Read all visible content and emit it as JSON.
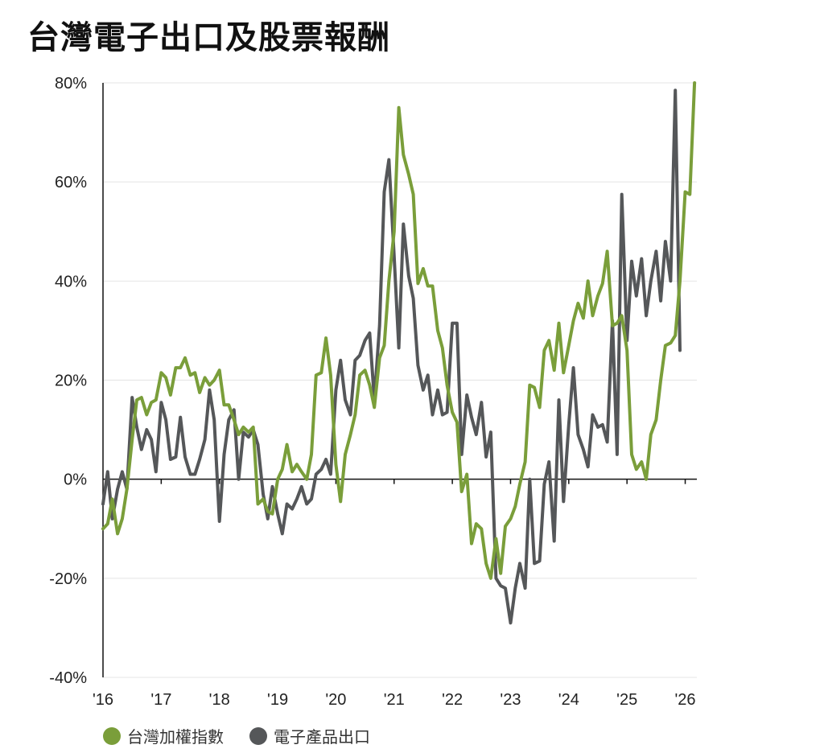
{
  "title": "台灣電子出口及股票報酬",
  "chart_data": {
    "type": "line",
    "title": "台灣電子出口及股票報酬",
    "xlabel": "",
    "ylabel": "",
    "xlim": [
      2016.0,
      2026.2
    ],
    "ylim": [
      -40,
      80
    ],
    "y_ticks": [
      80,
      60,
      40,
      20,
      0,
      -20,
      -40
    ],
    "y_tick_labels": [
      "80%",
      "60%",
      "40%",
      "20%",
      "0%",
      "-20%",
      "-40%"
    ],
    "x_ticks": [
      2016,
      2017,
      2018,
      2019,
      2020,
      2021,
      2022,
      2023,
      2024,
      2025,
      2026
    ],
    "x_tick_labels": [
      "'16",
      "'17",
      "'18",
      "'19",
      "'20",
      "'21",
      "'22",
      "'23",
      "'24",
      "'25",
      "'26"
    ],
    "grid": true,
    "legend_position": "bottom-left",
    "series": [
      {
        "name": "台灣加權指數",
        "color": "#7a9e3a",
        "points": [
          [
            2016.0,
            -10
          ],
          [
            2016.08,
            -9
          ],
          [
            2016.16,
            -4
          ],
          [
            2016.25,
            -11
          ],
          [
            2016.33,
            -8
          ],
          [
            2016.41,
            -2
          ],
          [
            2016.5,
            8
          ],
          [
            2016.58,
            16
          ],
          [
            2016.66,
            16.5
          ],
          [
            2016.75,
            13
          ],
          [
            2016.83,
            15.5
          ],
          [
            2016.91,
            16
          ],
          [
            2017.0,
            21.5
          ],
          [
            2017.08,
            20.5
          ],
          [
            2017.16,
            17
          ],
          [
            2017.25,
            22.5
          ],
          [
            2017.33,
            22.5
          ],
          [
            2017.41,
            24.5
          ],
          [
            2017.5,
            21
          ],
          [
            2017.58,
            21.5
          ],
          [
            2017.66,
            17.5
          ],
          [
            2017.75,
            20.5
          ],
          [
            2017.83,
            19
          ],
          [
            2017.91,
            20
          ],
          [
            2018.0,
            22
          ],
          [
            2018.08,
            15
          ],
          [
            2018.16,
            15
          ],
          [
            2018.25,
            12
          ],
          [
            2018.33,
            9
          ],
          [
            2018.41,
            10.5
          ],
          [
            2018.5,
            9.5
          ],
          [
            2018.58,
            10.5
          ],
          [
            2018.66,
            -5
          ],
          [
            2018.75,
            -4
          ],
          [
            2018.83,
            -6.5
          ],
          [
            2018.91,
            -7
          ],
          [
            2019.0,
            0
          ],
          [
            2019.08,
            2
          ],
          [
            2019.16,
            7
          ],
          [
            2019.25,
            1.5
          ],
          [
            2019.33,
            3
          ],
          [
            2019.41,
            1.5
          ],
          [
            2019.5,
            0
          ],
          [
            2019.58,
            5
          ],
          [
            2019.66,
            21
          ],
          [
            2019.75,
            21.5
          ],
          [
            2019.83,
            28.5
          ],
          [
            2019.91,
            21
          ],
          [
            2020.0,
            3
          ],
          [
            2020.08,
            -4.5
          ],
          [
            2020.16,
            5
          ],
          [
            2020.25,
            9
          ],
          [
            2020.33,
            13
          ],
          [
            2020.41,
            21
          ],
          [
            2020.5,
            22
          ],
          [
            2020.58,
            19
          ],
          [
            2020.66,
            14.5
          ],
          [
            2020.75,
            24.5
          ],
          [
            2020.83,
            27
          ],
          [
            2020.91,
            40
          ],
          [
            2021.0,
            50
          ],
          [
            2021.08,
            75
          ],
          [
            2021.16,
            65.5
          ],
          [
            2021.25,
            61.5
          ],
          [
            2021.33,
            57.5
          ],
          [
            2021.41,
            39.5
          ],
          [
            2021.5,
            42.5
          ],
          [
            2021.58,
            39
          ],
          [
            2021.66,
            39
          ],
          [
            2021.75,
            30
          ],
          [
            2021.83,
            26.5
          ],
          [
            2021.91,
            19
          ],
          [
            2022.0,
            13.5
          ],
          [
            2022.08,
            11.5
          ],
          [
            2022.16,
            -2.5
          ],
          [
            2022.25,
            1
          ],
          [
            2022.33,
            -13
          ],
          [
            2022.41,
            -9
          ],
          [
            2022.5,
            -10
          ],
          [
            2022.58,
            -17
          ],
          [
            2022.66,
            -20
          ],
          [
            2022.75,
            -12
          ],
          [
            2022.83,
            -19
          ],
          [
            2022.91,
            -9.5
          ],
          [
            2023.0,
            -8
          ],
          [
            2023.08,
            -5.5
          ],
          [
            2023.16,
            -1
          ],
          [
            2023.25,
            3.5
          ],
          [
            2023.33,
            19
          ],
          [
            2023.41,
            18.5
          ],
          [
            2023.5,
            14.5
          ],
          [
            2023.58,
            26
          ],
          [
            2023.66,
            28
          ],
          [
            2023.75,
            22
          ],
          [
            2023.83,
            31.5
          ],
          [
            2023.91,
            21.5
          ],
          [
            2024.0,
            27
          ],
          [
            2024.08,
            32
          ],
          [
            2024.16,
            35.5
          ],
          [
            2024.25,
            32.5
          ],
          [
            2024.33,
            40
          ],
          [
            2024.41,
            33
          ],
          [
            2024.5,
            37
          ],
          [
            2024.58,
            39.5
          ],
          [
            2024.66,
            46
          ],
          [
            2024.75,
            31
          ],
          [
            2024.83,
            31.5
          ],
          [
            2024.91,
            33
          ],
          [
            2025.0,
            26
          ],
          [
            2025.08,
            5
          ],
          [
            2025.16,
            2
          ],
          [
            2025.25,
            3.5
          ],
          [
            2025.33,
            0
          ],
          [
            2025.41,
            9
          ],
          [
            2025.5,
            12
          ],
          [
            2025.58,
            20
          ],
          [
            2025.66,
            27
          ],
          [
            2025.75,
            27.5
          ],
          [
            2025.83,
            29
          ],
          [
            2025.91,
            40
          ],
          [
            2026.0,
            58
          ],
          [
            2026.08,
            57.5
          ],
          [
            2026.16,
            80
          ]
        ]
      },
      {
        "name": "電子產品出口",
        "color": "#555759",
        "points": [
          [
            2016.0,
            -5
          ],
          [
            2016.08,
            1.5
          ],
          [
            2016.16,
            -8
          ],
          [
            2016.25,
            -2
          ],
          [
            2016.33,
            1.5
          ],
          [
            2016.41,
            -2
          ],
          [
            2016.5,
            16.5
          ],
          [
            2016.58,
            10.5
          ],
          [
            2016.66,
            6
          ],
          [
            2016.75,
            10
          ],
          [
            2016.83,
            8
          ],
          [
            2016.91,
            1.5
          ],
          [
            2017.0,
            15.5
          ],
          [
            2017.08,
            12
          ],
          [
            2017.16,
            4
          ],
          [
            2017.25,
            4.5
          ],
          [
            2017.33,
            12.5
          ],
          [
            2017.41,
            4.5
          ],
          [
            2017.5,
            1
          ],
          [
            2017.58,
            1
          ],
          [
            2017.66,
            4
          ],
          [
            2017.75,
            8
          ],
          [
            2017.83,
            18
          ],
          [
            2017.91,
            12
          ],
          [
            2018.0,
            -8.5
          ],
          [
            2018.08,
            5
          ],
          [
            2018.16,
            12
          ],
          [
            2018.25,
            14
          ],
          [
            2018.33,
            0
          ],
          [
            2018.41,
            9.5
          ],
          [
            2018.5,
            8.5
          ],
          [
            2018.58,
            10
          ],
          [
            2018.66,
            7
          ],
          [
            2018.75,
            -3
          ],
          [
            2018.83,
            -8
          ],
          [
            2018.91,
            -1.5
          ],
          [
            2019.0,
            -7
          ],
          [
            2019.08,
            -11
          ],
          [
            2019.16,
            -5
          ],
          [
            2019.25,
            -6
          ],
          [
            2019.33,
            -4
          ],
          [
            2019.41,
            -1.5
          ],
          [
            2019.5,
            -5
          ],
          [
            2019.58,
            -4
          ],
          [
            2019.66,
            1
          ],
          [
            2019.75,
            2
          ],
          [
            2019.83,
            4
          ],
          [
            2019.91,
            1
          ],
          [
            2020.0,
            18
          ],
          [
            2020.08,
            24
          ],
          [
            2020.16,
            16
          ],
          [
            2020.25,
            13
          ],
          [
            2020.33,
            24
          ],
          [
            2020.41,
            25
          ],
          [
            2020.5,
            28
          ],
          [
            2020.58,
            29.5
          ],
          [
            2020.66,
            16
          ],
          [
            2020.75,
            31
          ],
          [
            2020.83,
            58
          ],
          [
            2020.91,
            64.5
          ],
          [
            2021.0,
            45
          ],
          [
            2021.08,
            26.5
          ],
          [
            2021.16,
            51.5
          ],
          [
            2021.25,
            41
          ],
          [
            2021.33,
            36.5
          ],
          [
            2021.41,
            23
          ],
          [
            2021.5,
            18
          ],
          [
            2021.58,
            21
          ],
          [
            2021.66,
            13
          ],
          [
            2021.75,
            18
          ],
          [
            2021.83,
            13
          ],
          [
            2021.91,
            13.5
          ],
          [
            2022.0,
            31.5
          ],
          [
            2022.08,
            31.5
          ],
          [
            2022.16,
            5
          ],
          [
            2022.25,
            17
          ],
          [
            2022.33,
            12.5
          ],
          [
            2022.41,
            9
          ],
          [
            2022.5,
            15.5
          ],
          [
            2022.58,
            4.5
          ],
          [
            2022.66,
            9.5
          ],
          [
            2022.75,
            -20
          ],
          [
            2022.83,
            -21.5
          ],
          [
            2022.91,
            -22
          ],
          [
            2023.0,
            -29
          ],
          [
            2023.08,
            -22
          ],
          [
            2023.16,
            -17
          ],
          [
            2023.25,
            -22
          ],
          [
            2023.33,
            0
          ],
          [
            2023.41,
            -17
          ],
          [
            2023.5,
            -16.5
          ],
          [
            2023.58,
            -1
          ],
          [
            2023.66,
            3.5
          ],
          [
            2023.75,
            -12.5
          ],
          [
            2023.83,
            16
          ],
          [
            2023.91,
            -4.5
          ],
          [
            2024.0,
            11
          ],
          [
            2024.08,
            22.5
          ],
          [
            2024.16,
            9
          ],
          [
            2024.25,
            6
          ],
          [
            2024.33,
            2.5
          ],
          [
            2024.41,
            13
          ],
          [
            2024.5,
            10.5
          ],
          [
            2024.58,
            11
          ],
          [
            2024.66,
            7.5
          ],
          [
            2024.75,
            32
          ],
          [
            2024.83,
            5
          ],
          [
            2024.91,
            57.5
          ],
          [
            2025.0,
            28
          ],
          [
            2025.08,
            44
          ],
          [
            2025.16,
            37
          ],
          [
            2025.25,
            44.5
          ],
          [
            2025.33,
            33
          ],
          [
            2025.41,
            40
          ],
          [
            2025.5,
            46
          ],
          [
            2025.58,
            36
          ],
          [
            2025.66,
            48
          ],
          [
            2025.75,
            40
          ],
          [
            2025.83,
            78.5
          ],
          [
            2025.91,
            26
          ]
        ]
      }
    ]
  }
}
